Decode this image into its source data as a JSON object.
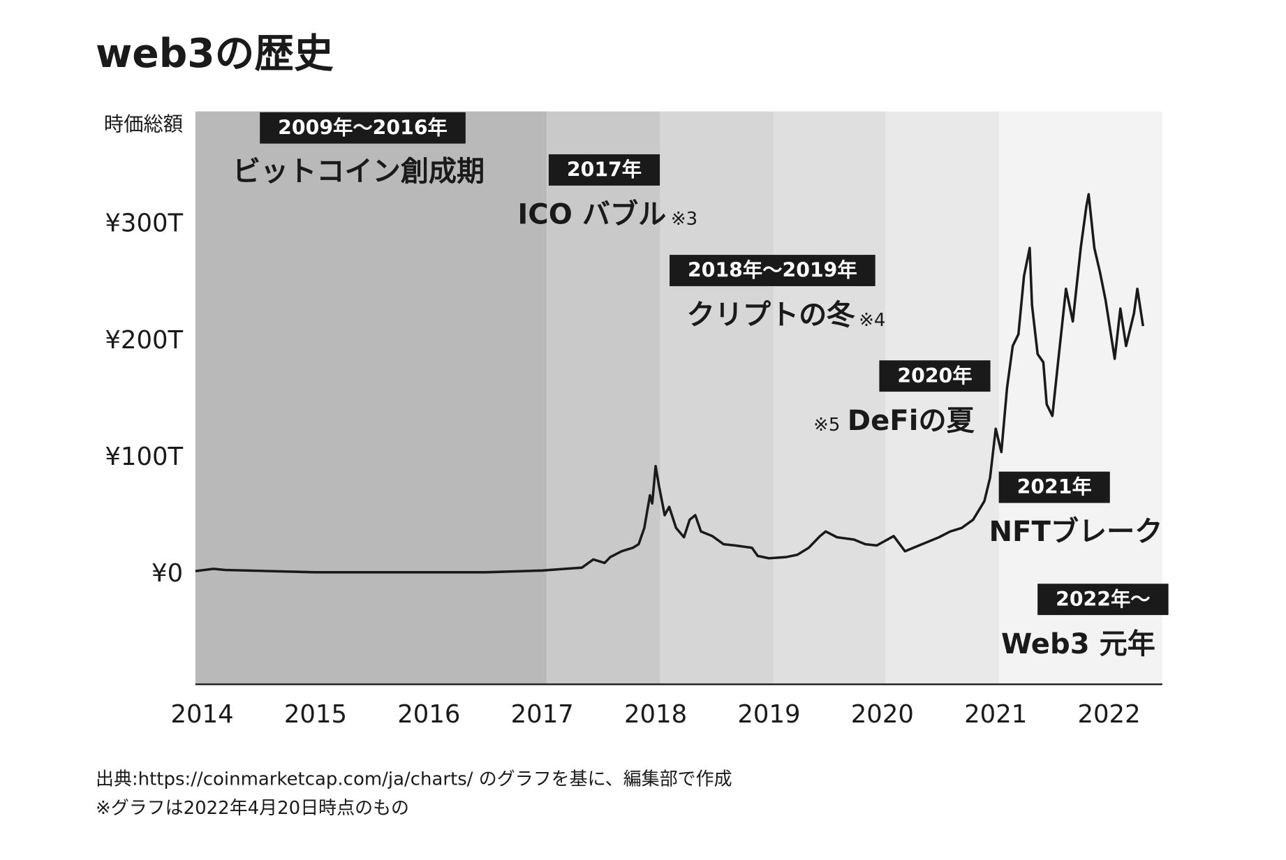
{
  "chart_data": {
    "type": "line",
    "title": "web3の歴史",
    "ylabel": "時価総額",
    "x": [
      2013.94,
      2014.1,
      2014.2,
      2015.0,
      2016.0,
      2016.5,
      2017.0,
      2017.2,
      2017.35,
      2017.45,
      2017.55,
      2017.6,
      2017.7,
      2017.8,
      2017.85,
      2017.9,
      2017.95,
      2017.97,
      2018.0,
      2018.03,
      2018.08,
      2018.12,
      2018.18,
      2018.25,
      2018.3,
      2018.35,
      2018.4,
      2018.5,
      2018.6,
      2018.7,
      2018.85,
      2018.9,
      2019.0,
      2019.15,
      2019.25,
      2019.35,
      2019.45,
      2019.5,
      2019.6,
      2019.75,
      2019.85,
      2019.95,
      2020.1,
      2020.2,
      2020.35,
      2020.5,
      2020.6,
      2020.7,
      2020.8,
      2020.9,
      2020.95,
      2021.0,
      2021.05,
      2021.1,
      2021.15,
      2021.2,
      2021.25,
      2021.3,
      2021.32,
      2021.37,
      2021.42,
      2021.45,
      2021.5,
      2021.55,
      2021.62,
      2021.68,
      2021.75,
      2021.8,
      2021.82,
      2021.87,
      2021.92,
      2021.97,
      2022.05,
      2022.1,
      2022.15,
      2022.22,
      2022.25,
      2022.3
    ],
    "values": [
      3,
      5,
      4,
      2,
      2,
      2,
      3.5,
      5,
      6,
      13,
      10,
      15,
      20,
      23,
      26,
      40,
      68,
      61,
      93,
      76,
      51,
      58,
      40,
      32,
      47,
      51,
      37,
      33,
      26,
      25,
      23,
      16,
      14,
      15,
      17,
      23,
      33,
      37,
      32,
      30,
      26,
      25,
      33,
      20,
      26,
      32,
      37,
      40,
      47,
      63,
      83,
      125,
      105,
      160,
      196,
      206,
      256,
      280,
      231,
      189,
      182,
      146,
      136,
      182,
      245,
      217,
      280,
      316,
      326,
      280,
      259,
      235,
      185,
      228,
      196,
      224,
      245,
      213
    ],
    "color": "#1a1a1a",
    "xlim": [
      2013.94,
      2022.47
    ],
    "ylim": [
      -94,
      397
    ],
    "xticks": [
      2014,
      2015,
      2016,
      2017,
      2018,
      2019,
      2020,
      2021,
      2022
    ],
    "yticks": [
      {
        "value": 0,
        "label": "¥0"
      },
      {
        "value": 100,
        "label": "¥100T"
      },
      {
        "value": 200,
        "label": "¥200T"
      },
      {
        "value": 300,
        "label": "¥300T"
      }
    ],
    "eras": [
      {
        "label": "2009年〜2016年",
        "name": "ビットコイン創成期",
        "from": 2013.94,
        "to": 2017.04,
        "color": "#b9b9b9"
      },
      {
        "label": "2017年",
        "name": "ICO バブル",
        "note": "※3",
        "from": 2017.04,
        "to": 2018.04,
        "color": "#c9c9c9"
      },
      {
        "label": "2018年〜2019年",
        "name": "クリプトの冬",
        "note": "※4",
        "from": 2018.04,
        "to": 2019.04,
        "color": "#d6d6d6"
      },
      {
        "label": "2020年",
        "name": "DeFiの夏",
        "note": "※5",
        "from": 2019.04,
        "to": 2020.03,
        "color": "#dfdfdf"
      },
      {
        "label": "2021年",
        "name": "NFTブレーク",
        "from": 2020.03,
        "to": 2021.03,
        "color": "#e9e9e9"
      },
      {
        "label": "2022年〜",
        "name": "Web3 元年",
        "from": 2021.03,
        "to": 2022.47,
        "color": "#f3f3f3"
      }
    ],
    "footnotes": [
      "出典:https://coinmarketcap.com/ja/charts/ のグラフを基に、編集部で作成",
      "※グラフは2022年4月20日時点のもの"
    ]
  }
}
